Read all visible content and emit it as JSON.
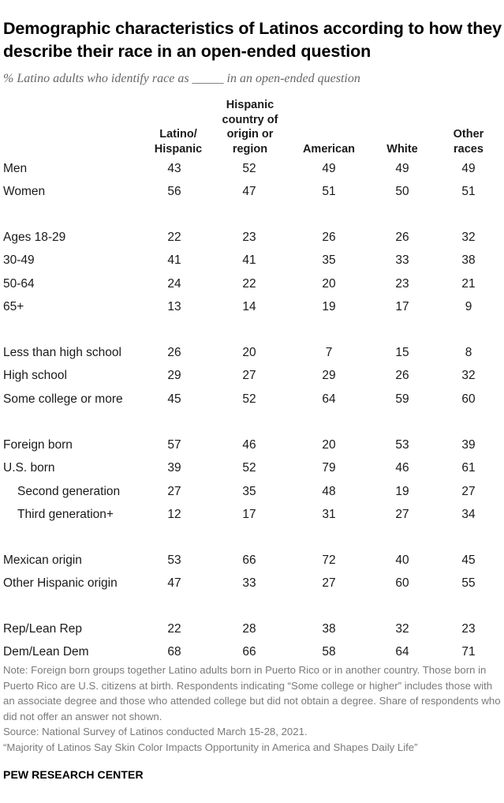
{
  "title": "Demographic characteristics of Latinos according to how they describe their race in an open-ended question",
  "subtitle": "% Latino adults who identify race as _____ in an open-ended question",
  "chart_data": {
    "type": "table",
    "columns": [
      "Latino/\nHispanic",
      "Hispanic\ncountry of\norigin or\nregion",
      "American",
      "White",
      "Other\nraces"
    ],
    "groups": [
      {
        "rows": [
          {
            "label": "Men",
            "indent": false,
            "values": [
              43,
              52,
              49,
              49,
              49
            ]
          },
          {
            "label": "Women",
            "indent": false,
            "values": [
              56,
              47,
              51,
              50,
              51
            ]
          }
        ]
      },
      {
        "rows": [
          {
            "label": "Ages 18-29",
            "indent": false,
            "values": [
              22,
              23,
              26,
              26,
              32
            ]
          },
          {
            "label": "30-49",
            "indent": false,
            "values": [
              41,
              41,
              35,
              33,
              38
            ]
          },
          {
            "label": "50-64",
            "indent": false,
            "values": [
              24,
              22,
              20,
              23,
              21
            ]
          },
          {
            "label": "65+",
            "indent": false,
            "values": [
              13,
              14,
              19,
              17,
              9
            ]
          }
        ]
      },
      {
        "rows": [
          {
            "label": "Less than high school",
            "indent": false,
            "values": [
              26,
              20,
              7,
              15,
              8
            ]
          },
          {
            "label": "High school",
            "indent": false,
            "values": [
              29,
              27,
              29,
              26,
              32
            ]
          },
          {
            "label": "Some college or more",
            "indent": false,
            "values": [
              45,
              52,
              64,
              59,
              60
            ]
          }
        ]
      },
      {
        "rows": [
          {
            "label": "Foreign born",
            "indent": false,
            "values": [
              57,
              46,
              20,
              53,
              39
            ]
          },
          {
            "label": "U.S. born",
            "indent": false,
            "values": [
              39,
              52,
              79,
              46,
              61
            ]
          },
          {
            "label": "Second generation",
            "indent": true,
            "values": [
              27,
              35,
              48,
              19,
              27
            ]
          },
          {
            "label": "Third generation+",
            "indent": true,
            "values": [
              12,
              17,
              31,
              27,
              34
            ]
          }
        ]
      },
      {
        "rows": [
          {
            "label": "Mexican origin",
            "indent": false,
            "values": [
              53,
              66,
              72,
              40,
              45
            ]
          },
          {
            "label": "Other Hispanic origin",
            "indent": false,
            "values": [
              47,
              33,
              27,
              60,
              55
            ]
          }
        ]
      },
      {
        "rows": [
          {
            "label": "Rep/Lean Rep",
            "indent": false,
            "values": [
              22,
              28,
              38,
              32,
              23
            ]
          },
          {
            "label": "Dem/Lean Dem",
            "indent": false,
            "values": [
              68,
              66,
              58,
              64,
              71
            ]
          }
        ]
      }
    ]
  },
  "notes": {
    "note": "Note: Foreign born groups together Latino adults born in Puerto Rico or in another country. Those born in Puerto Rico are U.S. citizens at birth. Respondents indicating “Some college or higher” includes those with an associate degree and those who attended college but did not obtain a degree. Share of respondents who did not offer an answer not shown.",
    "source": "Source: National Survey of Latinos conducted March 15-28, 2021.",
    "report": "“Majority of Latinos Say Skin Color Impacts Opportunity in America and Shapes Daily Life”"
  },
  "brand": "PEW RESEARCH CENTER"
}
